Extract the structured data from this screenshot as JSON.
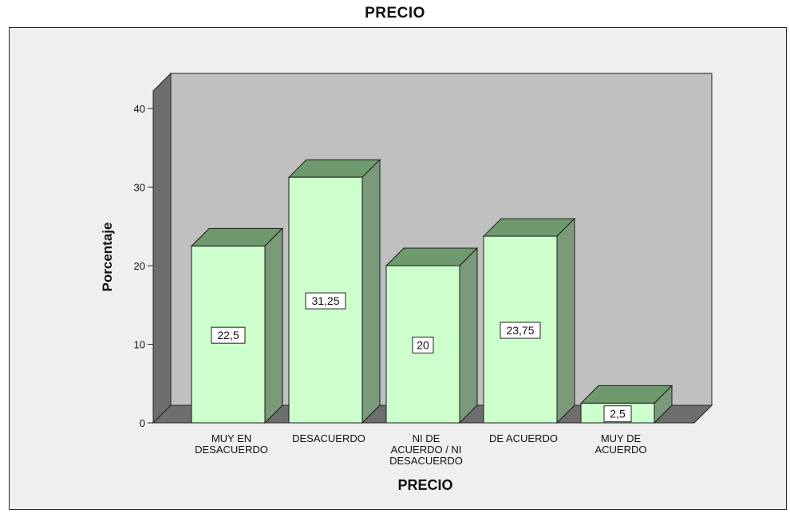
{
  "chart_data": {
    "type": "bar",
    "title": "PRECIO",
    "xlabel": "PRECIO",
    "ylabel": "Porcentaje",
    "categories": [
      [
        "MUY EN",
        "DESACUERDO"
      ],
      [
        "DESACUERDO"
      ],
      [
        "NI DE",
        "ACUERDO / NI",
        "DESACUERDO"
      ],
      [
        "DE ACUERDO"
      ],
      [
        "MUY DE",
        "ACUERDO"
      ]
    ],
    "values": [
      22.5,
      31.25,
      20,
      23.75,
      2.5
    ],
    "value_labels": [
      "22,5",
      "31,25",
      "20",
      "23,75",
      "2,5"
    ],
    "yticks": [
      0,
      10,
      20,
      30,
      40
    ],
    "ylim": [
      0,
      40
    ],
    "grid": false,
    "style": "3d",
    "colors": {
      "bar_front": "#ccffcc",
      "bar_top": "#6e9a6e",
      "bar_side": "#7a9a7a",
      "back_wall": "#c0c0c0",
      "left_wall": "#6e6e6e",
      "floor": "#6e6e6e",
      "background": "#efefef"
    }
  }
}
